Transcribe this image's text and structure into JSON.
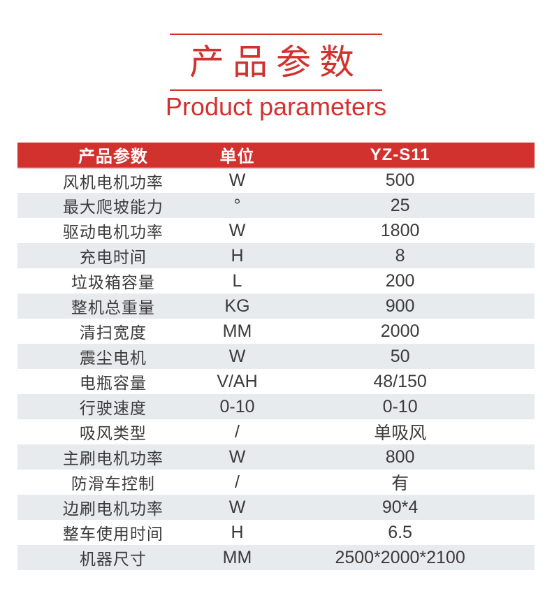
{
  "header": {
    "title_zh": "产品参数",
    "title_en": "Product parameters"
  },
  "colors": {
    "accent": "#d2322e",
    "header_underline": "#e0615d",
    "row_alt": "#e8ebee",
    "text": "#3a3a3a",
    "header_text": "#ffffff"
  },
  "table": {
    "columns": [
      "产品参数",
      "单位",
      "YZ-S11"
    ],
    "rows": [
      [
        "风机电机功率",
        "W",
        "500"
      ],
      [
        "最大爬坡能力",
        "°",
        "25"
      ],
      [
        "驱动电机功率",
        "W",
        "1800"
      ],
      [
        "充电时间",
        "H",
        "8"
      ],
      [
        "垃圾箱容量",
        "L",
        "200"
      ],
      [
        "整机总重量",
        "KG",
        "900"
      ],
      [
        "清扫宽度",
        "MM",
        "2000"
      ],
      [
        "震尘电机",
        "W",
        "50"
      ],
      [
        "电瓶容量",
        "V/AH",
        "48/150"
      ],
      [
        "行驶速度",
        "0-10",
        "0-10"
      ],
      [
        "吸风类型",
        "/",
        "单吸风"
      ],
      [
        "主刷电机功率",
        "W",
        "800"
      ],
      [
        "防滑车控制",
        "/",
        "有"
      ],
      [
        "边刷电机功率",
        "W",
        "90*4"
      ],
      [
        "整车使用时间",
        "H",
        "6.5"
      ],
      [
        "机器尺寸",
        "MM",
        "2500*2000*2100"
      ]
    ]
  }
}
